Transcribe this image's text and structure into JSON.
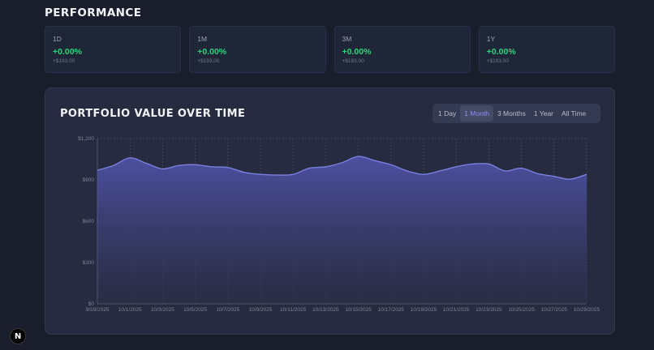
{
  "performance": {
    "title": "PERFORMANCE",
    "cards": [
      {
        "period": "1D",
        "change": "+0.00%",
        "amount": "+$193.00"
      },
      {
        "period": "1M",
        "change": "+0.00%",
        "amount": "+$193.00"
      },
      {
        "period": "3M",
        "change": "+0.00%",
        "amount": "+$193.00"
      },
      {
        "period": "1Y",
        "change": "+0.00%",
        "amount": "+$193.00"
      }
    ]
  },
  "portfolio_chart": {
    "title": "PORTFOLIO VALUE OVER TIME",
    "ranges": [
      "1 Day",
      "1 Month",
      "3 Months",
      "1 Year",
      "All Time"
    ],
    "selected_range": "1 Month"
  },
  "colors": {
    "accent": "#8b8ff5",
    "positive": "#2fd37a",
    "line": "#7b7fe0"
  },
  "badge": {
    "icon": "nextjs-n-icon",
    "letter": "N"
  },
  "chart_data": {
    "type": "area",
    "title": "",
    "xlabel": "",
    "ylabel": "",
    "ylim": [
      0,
      1200
    ],
    "yticks": [
      0,
      300,
      600,
      900,
      1200
    ],
    "ytick_labels": [
      "$0",
      "$300",
      "$600",
      "$900",
      "$1,200"
    ],
    "xtick_labels": [
      "9/29/2025",
      "10/1/2025",
      "10/3/2025",
      "10/5/2025",
      "10/7/2025",
      "10/9/2025",
      "10/11/2025",
      "10/13/2025",
      "10/15/2025",
      "10/17/2025",
      "10/19/2025",
      "10/21/2025",
      "10/23/2025",
      "10/25/2025",
      "10/27/2025",
      "10/29/2025"
    ],
    "grid": true,
    "series": [
      {
        "values": [
          970,
          1005,
          1060,
          1020,
          980,
          1005,
          1010,
          995,
          990,
          955,
          940,
          935,
          940,
          985,
          995,
          1025,
          1070,
          1040,
          1010,
          965,
          940,
          965,
          995,
          1015,
          1015,
          965,
          985,
          945,
          925,
          905,
          940
        ]
      }
    ]
  }
}
